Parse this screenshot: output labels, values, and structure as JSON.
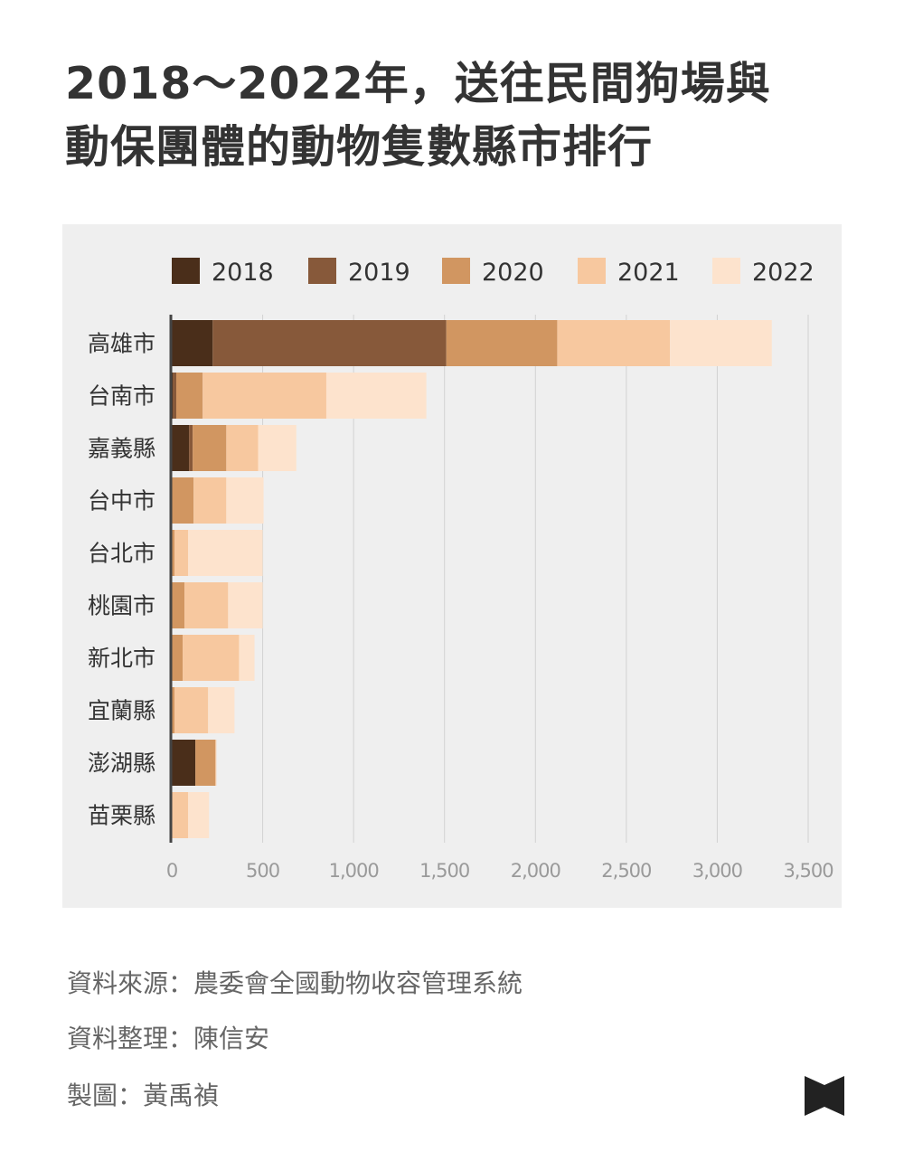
{
  "title_line1": "2018～2022年，送往民間狗場與",
  "title_line2": "動保團體的動物隻數縣市排行",
  "source": "資料來源：農委會全國動物收容管理系統",
  "compiler": "資料整理：陳信安",
  "designer": "製圖：黃禹禎",
  "logo_icon": "bookmark-logo-icon",
  "chart_data": {
    "type": "bar",
    "orientation": "horizontal",
    "stacked": true,
    "title": "",
    "xlabel": "",
    "ylabel": "",
    "xlim": [
      0,
      3500
    ],
    "x_ticks": [
      0,
      500,
      1000,
      1500,
      2000,
      2500,
      3000,
      3500
    ],
    "x_tick_labels": [
      "0",
      "500",
      "1,000",
      "1,500",
      "2,000",
      "2,500",
      "3,000",
      "3,500"
    ],
    "grid": true,
    "legend_position": "top",
    "categories": [
      "高雄市",
      "台南市",
      "嘉義縣",
      "台中市",
      "台北市",
      "桃園市",
      "新北市",
      "宜蘭縣",
      "澎湖縣",
      "苗栗縣"
    ],
    "series": [
      {
        "name": "2018",
        "color": "#4a2e1a",
        "values": [
          225,
          5,
          95,
          0,
          0,
          0,
          0,
          0,
          130,
          0
        ]
      },
      {
        "name": "2019",
        "color": "#87593a",
        "values": [
          1285,
          20,
          20,
          0,
          0,
          0,
          0,
          0,
          0,
          0
        ]
      },
      {
        "name": "2020",
        "color": "#d19661",
        "values": [
          610,
          145,
          185,
          120,
          15,
          70,
          60,
          15,
          110,
          0
        ]
      },
      {
        "name": "2021",
        "color": "#f7c89f",
        "values": [
          620,
          680,
          175,
          180,
          75,
          240,
          310,
          185,
          5,
          90
        ]
      },
      {
        "name": "2022",
        "color": "#fde3cd",
        "values": [
          560,
          550,
          210,
          205,
          410,
          190,
          85,
          145,
          0,
          115
        ]
      }
    ]
  }
}
